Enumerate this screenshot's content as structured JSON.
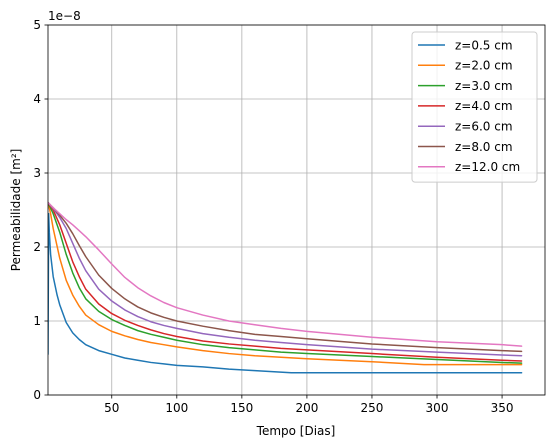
{
  "chart_data": {
    "type": "line",
    "title": "",
    "xlabel": "Tempo [Dias]",
    "ylabel": "Permeabilidade [m²]",
    "y_offset_label": "1e−8",
    "xlim": [
      1,
      383
    ],
    "ylim": [
      0,
      5
    ],
    "y_scale_note": "values shown in units of 1e-8 m²",
    "xticks": [
      50,
      100,
      150,
      200,
      250,
      300,
      350
    ],
    "yticks": [
      0,
      1,
      2,
      3,
      4,
      5
    ],
    "grid": true,
    "legend_position": "upper right",
    "series": [
      {
        "name": "z=0.5 cm",
        "color": "#1f77b4",
        "x": [
          1,
          1.5,
          2,
          3,
          5,
          8,
          10,
          15,
          20,
          25,
          30,
          40,
          50,
          60,
          70,
          80,
          90,
          100,
          120,
          140,
          160,
          188,
          200,
          250,
          300,
          350,
          365
        ],
        "y": [
          0.55,
          2.45,
          2.2,
          1.9,
          1.6,
          1.35,
          1.22,
          0.98,
          0.84,
          0.75,
          0.68,
          0.6,
          0.55,
          0.5,
          0.47,
          0.44,
          0.42,
          0.4,
          0.38,
          0.35,
          0.33,
          0.3,
          0.3,
          0.3,
          0.3,
          0.3,
          0.3
        ]
      },
      {
        "name": "z=2.0 cm",
        "color": "#ff7f0e",
        "x": [
          1,
          3,
          5,
          10,
          15,
          20,
          25,
          30,
          40,
          50,
          60,
          70,
          80,
          90,
          100,
          120,
          140,
          160,
          180,
          200,
          250,
          290,
          300,
          350,
          365
        ],
        "y": [
          2.6,
          2.45,
          2.25,
          1.85,
          1.55,
          1.35,
          1.2,
          1.08,
          0.95,
          0.86,
          0.8,
          0.75,
          0.71,
          0.68,
          0.65,
          0.6,
          0.56,
          0.53,
          0.51,
          0.49,
          0.45,
          0.41,
          0.41,
          0.41,
          0.41
        ]
      },
      {
        "name": "z=3.0 cm",
        "color": "#2ca02c",
        "x": [
          1,
          5,
          10,
          15,
          20,
          25,
          30,
          40,
          50,
          60,
          70,
          80,
          90,
          100,
          120,
          140,
          160,
          180,
          200,
          250,
          300,
          350,
          365
        ],
        "y": [
          2.6,
          2.45,
          2.2,
          1.9,
          1.65,
          1.45,
          1.3,
          1.13,
          1.02,
          0.94,
          0.87,
          0.82,
          0.78,
          0.74,
          0.68,
          0.64,
          0.61,
          0.58,
          0.56,
          0.52,
          0.48,
          0.44,
          0.43
        ]
      },
      {
        "name": "z=4.0 cm",
        "color": "#d62728",
        "x": [
          1,
          5,
          10,
          15,
          20,
          25,
          30,
          40,
          50,
          60,
          70,
          80,
          90,
          100,
          120,
          140,
          160,
          180,
          200,
          250,
          300,
          350,
          365
        ],
        "y": [
          2.6,
          2.5,
          2.3,
          2.05,
          1.8,
          1.6,
          1.43,
          1.23,
          1.1,
          1.01,
          0.94,
          0.88,
          0.83,
          0.79,
          0.73,
          0.69,
          0.66,
          0.63,
          0.61,
          0.56,
          0.51,
          0.47,
          0.46
        ]
      },
      {
        "name": "z=6.0 cm",
        "color": "#9467bd",
        "x": [
          1,
          5,
          10,
          15,
          20,
          25,
          30,
          40,
          50,
          60,
          70,
          80,
          90,
          100,
          120,
          140,
          160,
          180,
          200,
          250,
          300,
          350,
          365
        ],
        "y": [
          2.6,
          2.52,
          2.4,
          2.25,
          2.05,
          1.85,
          1.68,
          1.43,
          1.27,
          1.15,
          1.06,
          0.99,
          0.94,
          0.9,
          0.83,
          0.78,
          0.74,
          0.71,
          0.68,
          0.62,
          0.58,
          0.54,
          0.53
        ]
      },
      {
        "name": "z=8.0 cm",
        "color": "#8c564b",
        "x": [
          1,
          5,
          10,
          15,
          20,
          25,
          30,
          40,
          50,
          60,
          70,
          80,
          90,
          100,
          120,
          140,
          160,
          180,
          200,
          250,
          300,
          350,
          365
        ],
        "y": [
          2.6,
          2.53,
          2.43,
          2.32,
          2.18,
          2.02,
          1.87,
          1.62,
          1.44,
          1.3,
          1.19,
          1.11,
          1.05,
          1.0,
          0.93,
          0.87,
          0.82,
          0.79,
          0.76,
          0.69,
          0.64,
          0.6,
          0.59
        ]
      },
      {
        "name": "z=12.0 cm",
        "color": "#e377c2",
        "x": [
          1,
          5,
          10,
          15,
          20,
          25,
          30,
          35,
          40,
          50,
          60,
          70,
          80,
          90,
          100,
          120,
          140,
          160,
          180,
          200,
          250,
          300,
          350,
          365
        ],
        "y": [
          2.6,
          2.53,
          2.45,
          2.37,
          2.3,
          2.22,
          2.14,
          2.05,
          1.96,
          1.77,
          1.59,
          1.45,
          1.34,
          1.25,
          1.18,
          1.08,
          1.0,
          0.95,
          0.9,
          0.86,
          0.78,
          0.72,
          0.68,
          0.66
        ]
      }
    ]
  }
}
